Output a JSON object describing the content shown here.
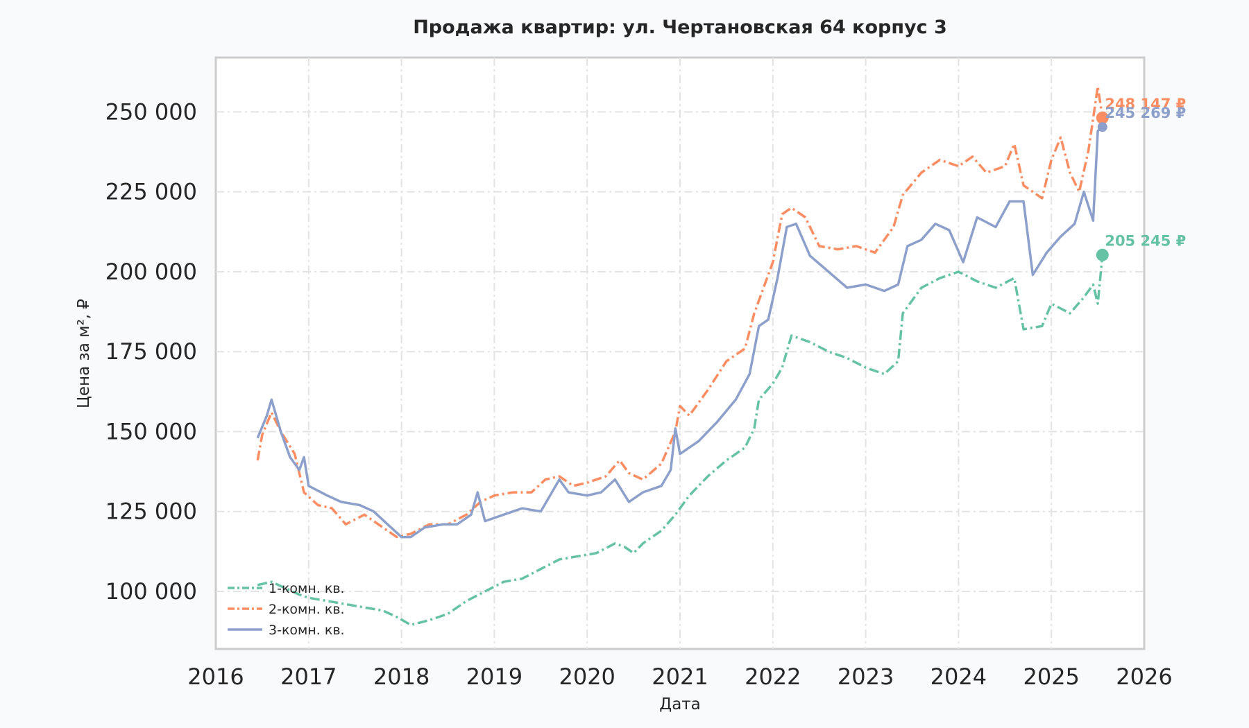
{
  "chart_data": {
    "type": "line",
    "title": "Продажа квартир: ул. Чертановская 64 корпус 3",
    "xlabel": "Дата",
    "ylabel": "Цена за м², ₽",
    "xlim": [
      2016,
      2026
    ],
    "ylim": [
      82000,
      267000
    ],
    "x_ticks": [
      "2016",
      "2017",
      "2018",
      "2019",
      "2020",
      "2021",
      "2022",
      "2023",
      "2024",
      "2025",
      "2026"
    ],
    "y_ticks": [
      "100 000",
      "125 000",
      "150 000",
      "175 000",
      "200 000",
      "225 000",
      "250 000"
    ],
    "y_tick_values": [
      100000,
      125000,
      150000,
      175000,
      200000,
      225000,
      250000
    ],
    "grid": true,
    "legend_position": "bottom-left",
    "series": [
      {
        "name": "1-комн. кв.",
        "color": "#66c2a5",
        "dash": "dashdot",
        "end_label": "205 245 ₽",
        "end_value": 205245,
        "end_x": 2025.55,
        "points": [
          [
            2016.45,
            102000
          ],
          [
            2016.6,
            103000
          ],
          [
            2016.75,
            101000
          ],
          [
            2016.9,
            99000
          ],
          [
            2017.0,
            98000
          ],
          [
            2017.2,
            97000
          ],
          [
            2017.4,
            96000
          ],
          [
            2017.6,
            95000
          ],
          [
            2017.8,
            94000
          ],
          [
            2017.95,
            92000
          ],
          [
            2018.1,
            89500
          ],
          [
            2018.3,
            91000
          ],
          [
            2018.5,
            93000
          ],
          [
            2018.7,
            97000
          ],
          [
            2018.9,
            100000
          ],
          [
            2019.1,
            103000
          ],
          [
            2019.3,
            104000
          ],
          [
            2019.5,
            107000
          ],
          [
            2019.7,
            110000
          ],
          [
            2019.9,
            111000
          ],
          [
            2020.1,
            112000
          ],
          [
            2020.3,
            115000
          ],
          [
            2020.4,
            114000
          ],
          [
            2020.5,
            112000
          ],
          [
            2020.6,
            115000
          ],
          [
            2020.8,
            119000
          ],
          [
            2020.95,
            124000
          ],
          [
            2021.1,
            130000
          ],
          [
            2021.3,
            136000
          ],
          [
            2021.5,
            141000
          ],
          [
            2021.7,
            145000
          ],
          [
            2021.8,
            151000
          ],
          [
            2021.85,
            160000
          ],
          [
            2022.0,
            165000
          ],
          [
            2022.1,
            170000
          ],
          [
            2022.2,
            180000
          ],
          [
            2022.4,
            178000
          ],
          [
            2022.6,
            175000
          ],
          [
            2022.8,
            173000
          ],
          [
            2023.0,
            170000
          ],
          [
            2023.2,
            168000
          ],
          [
            2023.35,
            172000
          ],
          [
            2023.4,
            187000
          ],
          [
            2023.6,
            195000
          ],
          [
            2023.8,
            198000
          ],
          [
            2024.0,
            200000
          ],
          [
            2024.2,
            197000
          ],
          [
            2024.4,
            195000
          ],
          [
            2024.6,
            198000
          ],
          [
            2024.7,
            182000
          ],
          [
            2024.9,
            183000
          ],
          [
            2025.0,
            190000
          ],
          [
            2025.2,
            187000
          ],
          [
            2025.35,
            192000
          ],
          [
            2025.45,
            196000
          ],
          [
            2025.5,
            190000
          ],
          [
            2025.55,
            205245
          ]
        ]
      },
      {
        "name": "2-комн. кв.",
        "color": "#fc8d62",
        "dash": "dashdot",
        "end_label": "248 147 ₽",
        "end_value": 248147,
        "end_x": 2025.55,
        "points": [
          [
            2016.45,
            141000
          ],
          [
            2016.5,
            149000
          ],
          [
            2016.6,
            156000
          ],
          [
            2016.7,
            150000
          ],
          [
            2016.85,
            143000
          ],
          [
            2016.95,
            131000
          ],
          [
            2017.1,
            127000
          ],
          [
            2017.25,
            126000
          ],
          [
            2017.4,
            121000
          ],
          [
            2017.6,
            124000
          ],
          [
            2017.8,
            120000
          ],
          [
            2017.95,
            117000
          ],
          [
            2018.1,
            118000
          ],
          [
            2018.3,
            121000
          ],
          [
            2018.5,
            121000
          ],
          [
            2018.7,
            124000
          ],
          [
            2018.85,
            128000
          ],
          [
            2019.0,
            130000
          ],
          [
            2019.2,
            131000
          ],
          [
            2019.4,
            131000
          ],
          [
            2019.55,
            135000
          ],
          [
            2019.7,
            136000
          ],
          [
            2019.85,
            133000
          ],
          [
            2020.0,
            134000
          ],
          [
            2020.2,
            136000
          ],
          [
            2020.35,
            141000
          ],
          [
            2020.45,
            137000
          ],
          [
            2020.6,
            135000
          ],
          [
            2020.8,
            140000
          ],
          [
            2020.95,
            150000
          ],
          [
            2021.0,
            158000
          ],
          [
            2021.1,
            155000
          ],
          [
            2021.3,
            163000
          ],
          [
            2021.5,
            172000
          ],
          [
            2021.7,
            176000
          ],
          [
            2021.8,
            187000
          ],
          [
            2021.9,
            195000
          ],
          [
            2022.0,
            203000
          ],
          [
            2022.1,
            218000
          ],
          [
            2022.2,
            220000
          ],
          [
            2022.35,
            217000
          ],
          [
            2022.5,
            208000
          ],
          [
            2022.7,
            207000
          ],
          [
            2022.9,
            208000
          ],
          [
            2023.1,
            206000
          ],
          [
            2023.3,
            214000
          ],
          [
            2023.4,
            224000
          ],
          [
            2023.6,
            231000
          ],
          [
            2023.8,
            235000
          ],
          [
            2024.0,
            233000
          ],
          [
            2024.15,
            236000
          ],
          [
            2024.3,
            231000
          ],
          [
            2024.5,
            233000
          ],
          [
            2024.6,
            240000
          ],
          [
            2024.7,
            227000
          ],
          [
            2024.9,
            223000
          ],
          [
            2025.0,
            235000
          ],
          [
            2025.1,
            242000
          ],
          [
            2025.2,
            231000
          ],
          [
            2025.3,
            225000
          ],
          [
            2025.4,
            238000
          ],
          [
            2025.5,
            258000
          ],
          [
            2025.55,
            248147
          ]
        ]
      },
      {
        "name": "3-комн. кв.",
        "color": "#8da0cb",
        "dash": "solid",
        "end_label": "245 269 ₽",
        "end_value": 245269,
        "end_x": 2025.55,
        "points": [
          [
            2016.45,
            148000
          ],
          [
            2016.55,
            155000
          ],
          [
            2016.6,
            160000
          ],
          [
            2016.7,
            150000
          ],
          [
            2016.8,
            142000
          ],
          [
            2016.9,
            138000
          ],
          [
            2016.95,
            142000
          ],
          [
            2017.0,
            133000
          ],
          [
            2017.2,
            130000
          ],
          [
            2017.35,
            128000
          ],
          [
            2017.55,
            127000
          ],
          [
            2017.7,
            125000
          ],
          [
            2017.85,
            121000
          ],
          [
            2018.0,
            117000
          ],
          [
            2018.1,
            117000
          ],
          [
            2018.25,
            120000
          ],
          [
            2018.45,
            121000
          ],
          [
            2018.6,
            121000
          ],
          [
            2018.75,
            124000
          ],
          [
            2018.82,
            131000
          ],
          [
            2018.9,
            122000
          ],
          [
            2019.1,
            124000
          ],
          [
            2019.3,
            126000
          ],
          [
            2019.5,
            125000
          ],
          [
            2019.6,
            130000
          ],
          [
            2019.7,
            135000
          ],
          [
            2019.8,
            131000
          ],
          [
            2020.0,
            130000
          ],
          [
            2020.15,
            131000
          ],
          [
            2020.3,
            135000
          ],
          [
            2020.45,
            128000
          ],
          [
            2020.6,
            131000
          ],
          [
            2020.8,
            133000
          ],
          [
            2020.9,
            138000
          ],
          [
            2020.95,
            151000
          ],
          [
            2021.0,
            143000
          ],
          [
            2021.2,
            147000
          ],
          [
            2021.4,
            153000
          ],
          [
            2021.6,
            160000
          ],
          [
            2021.75,
            168000
          ],
          [
            2021.85,
            183000
          ],
          [
            2021.95,
            185000
          ],
          [
            2022.05,
            198000
          ],
          [
            2022.15,
            214000
          ],
          [
            2022.25,
            215000
          ],
          [
            2022.4,
            205000
          ],
          [
            2022.6,
            200000
          ],
          [
            2022.8,
            195000
          ],
          [
            2023.0,
            196000
          ],
          [
            2023.2,
            194000
          ],
          [
            2023.35,
            196000
          ],
          [
            2023.45,
            208000
          ],
          [
            2023.6,
            210000
          ],
          [
            2023.75,
            215000
          ],
          [
            2023.9,
            213000
          ],
          [
            2024.05,
            203000
          ],
          [
            2024.2,
            217000
          ],
          [
            2024.4,
            214000
          ],
          [
            2024.55,
            222000
          ],
          [
            2024.7,
            222000
          ],
          [
            2024.8,
            199000
          ],
          [
            2024.95,
            206000
          ],
          [
            2025.1,
            211000
          ],
          [
            2025.25,
            215000
          ],
          [
            2025.35,
            225000
          ],
          [
            2025.45,
            216000
          ],
          [
            2025.5,
            244000
          ],
          [
            2025.55,
            245269
          ]
        ]
      }
    ]
  }
}
